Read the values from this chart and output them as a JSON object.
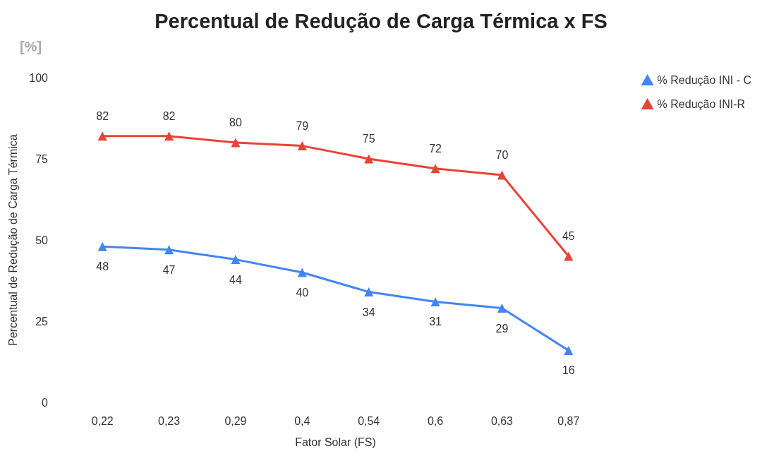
{
  "chart_data": {
    "type": "line",
    "title": "Percentual de Redução de Carga Térmica x FS",
    "xlabel": "Fator Solar (FS)",
    "ylabel": "Percentual de Redução de Carga Térmica",
    "annotations": [
      "[%]"
    ],
    "categories": [
      "0,22",
      "0,23",
      "0,29",
      "0,4",
      "0,54",
      "0,6",
      "0,63",
      "0,87"
    ],
    "series": [
      {
        "name": "% Redução INI - C",
        "color": "#4285f4",
        "values": [
          48,
          47,
          44,
          40,
          34,
          31,
          29,
          16
        ]
      },
      {
        "name": "% Redução INI-R",
        "color": "#ea4335",
        "values": [
          82,
          82,
          80,
          79,
          75,
          72,
          70,
          45
        ]
      }
    ],
    "ylim": [
      0,
      100
    ],
    "yticks": [
      0,
      25,
      50,
      75,
      100
    ],
    "grid": false,
    "legend": "top right",
    "marker": "triangle",
    "line_style": "solid",
    "data_labels": true
  }
}
